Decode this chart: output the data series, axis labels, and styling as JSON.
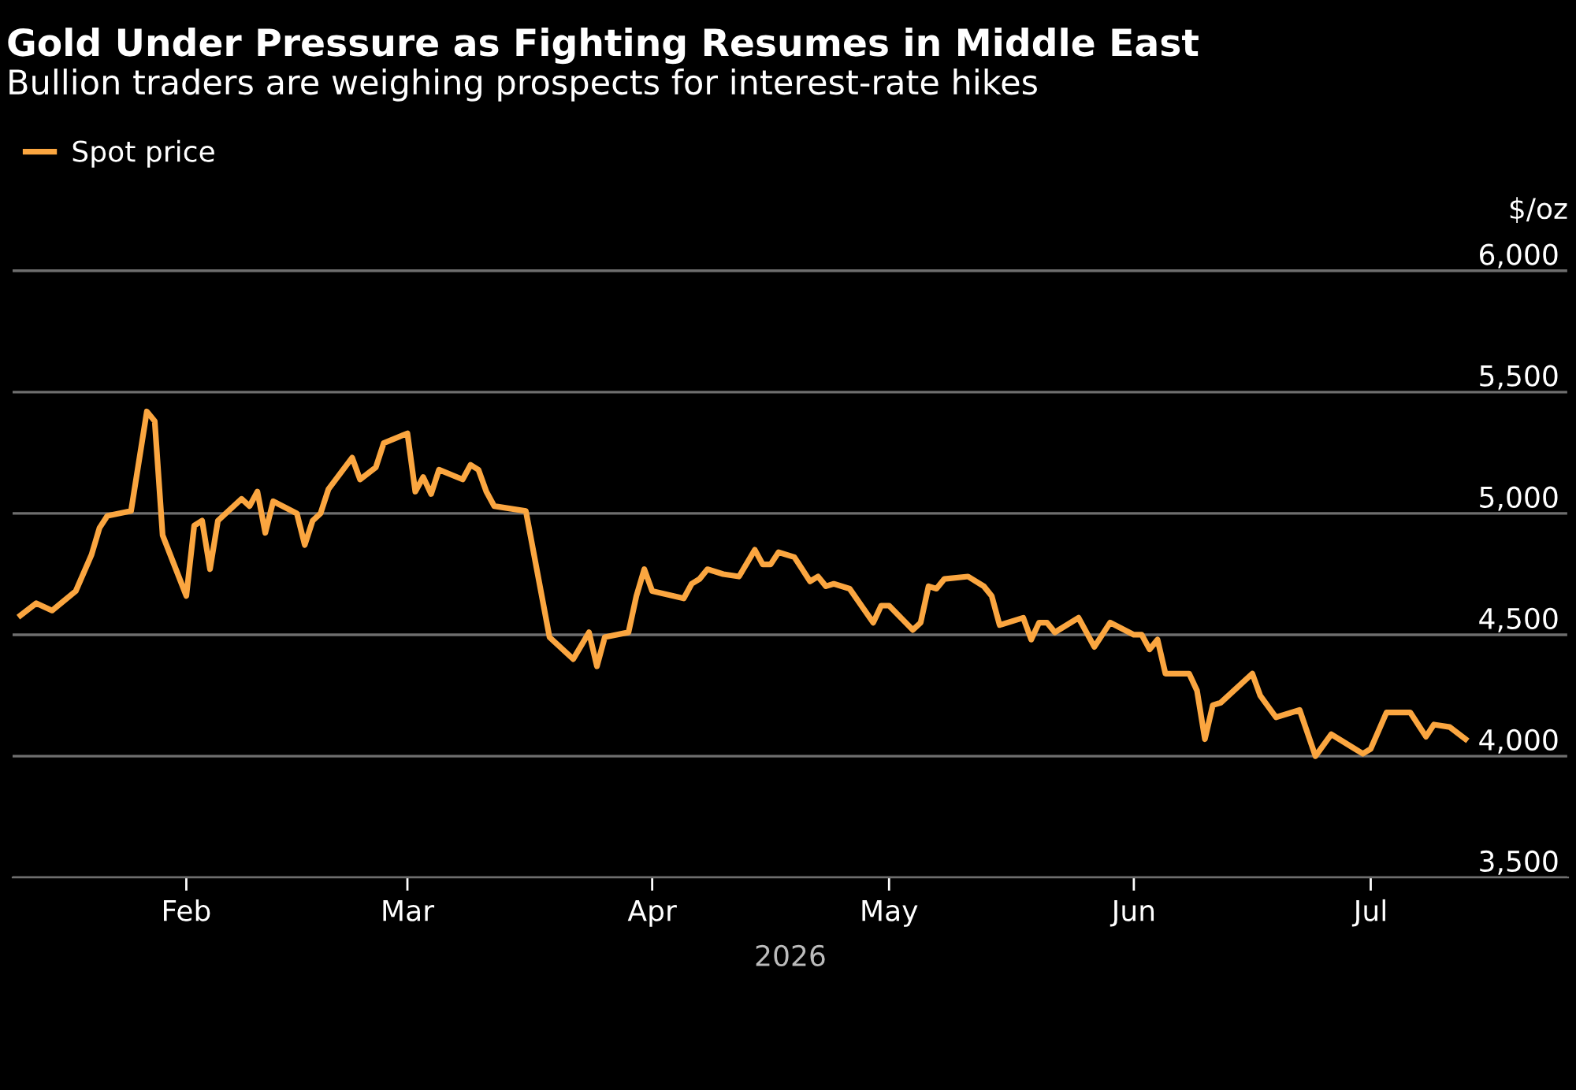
{
  "chart_data": {
    "type": "line",
    "title": "Gold Under Pressure as Fighting Resumes in Middle East",
    "subtitle": "Bullion traders are weighing prospects for interest-rate hikes",
    "xlabel": "2026",
    "ylabel": "$/oz",
    "x": [
      "2026-01-11",
      "2026-01-13",
      "2026-01-15",
      "2026-01-18",
      "2026-01-20",
      "2026-01-21",
      "2026-01-22",
      "2026-01-25",
      "2026-01-27",
      "2026-01-28",
      "2026-01-29",
      "2026-02-01",
      "2026-02-02",
      "2026-02-03",
      "2026-02-04",
      "2026-02-05",
      "2026-02-08",
      "2026-02-09",
      "2026-02-10",
      "2026-02-11",
      "2026-02-12",
      "2026-02-15",
      "2026-02-16",
      "2026-02-17",
      "2026-02-18",
      "2026-02-19",
      "2026-02-22",
      "2026-02-23",
      "2026-02-25",
      "2026-02-26",
      "2026-03-01",
      "2026-03-02",
      "2026-03-03",
      "2026-03-04",
      "2026-03-05",
      "2026-03-08",
      "2026-03-09",
      "2026-03-10",
      "2026-03-11",
      "2026-03-12",
      "2026-03-16",
      "2026-03-19",
      "2026-03-22",
      "2026-03-24",
      "2026-03-25",
      "2026-03-26",
      "2026-03-29",
      "2026-03-30",
      "2026-03-31",
      "2026-04-01",
      "2026-04-05",
      "2026-04-06",
      "2026-04-07",
      "2026-04-08",
      "2026-04-10",
      "2026-04-12",
      "2026-04-14",
      "2026-04-15",
      "2026-04-16",
      "2026-04-17",
      "2026-04-19",
      "2026-04-21",
      "2026-04-22",
      "2026-04-23",
      "2026-04-24",
      "2026-04-26",
      "2026-04-29",
      "2026-04-30",
      "2026-05-01",
      "2026-05-04",
      "2026-05-05",
      "2026-05-06",
      "2026-05-07",
      "2026-05-08",
      "2026-05-11",
      "2026-05-13",
      "2026-05-14",
      "2026-05-15",
      "2026-05-18",
      "2026-05-19",
      "2026-05-20",
      "2026-05-21",
      "2026-05-22",
      "2026-05-25",
      "2026-05-27",
      "2026-05-29",
      "2026-06-01",
      "2026-06-02",
      "2026-06-03",
      "2026-06-04",
      "2026-06-05",
      "2026-06-08",
      "2026-06-09",
      "2026-06-10",
      "2026-06-11",
      "2026-06-12",
      "2026-06-16",
      "2026-06-17",
      "2026-06-19",
      "2026-06-22",
      "2026-06-24",
      "2026-06-26",
      "2026-06-29",
      "2026-06-30",
      "2026-07-01",
      "2026-07-03",
      "2026-07-06",
      "2026-07-08",
      "2026-07-09",
      "2026-07-11",
      "2026-07-13"
    ],
    "series": [
      {
        "name": "Spot price",
        "color": "#fba640",
        "values": [
          4580,
          4630,
          4600,
          4680,
          4830,
          4940,
          4990,
          5010,
          5420,
          5380,
          4910,
          4660,
          4950,
          4970,
          4770,
          4970,
          5060,
          5030,
          5090,
          4920,
          5050,
          5000,
          4870,
          4970,
          5000,
          5100,
          5230,
          5140,
          5190,
          5290,
          5330,
          5090,
          5150,
          5080,
          5180,
          5140,
          5200,
          5180,
          5090,
          5030,
          5010,
          4490,
          4400,
          4510,
          4370,
          4490,
          4510,
          4660,
          4770,
          4680,
          4650,
          4710,
          4730,
          4770,
          4750,
          4740,
          4850,
          4790,
          4790,
          4840,
          4820,
          4720,
          4740,
          4700,
          4710,
          4690,
          4550,
          4620,
          4620,
          4520,
          4550,
          4700,
          4690,
          4730,
          4740,
          4700,
          4660,
          4540,
          4570,
          4480,
          4550,
          4550,
          4510,
          4570,
          4450,
          4550,
          4500,
          4500,
          4440,
          4480,
          4340,
          4340,
          4270,
          4070,
          4210,
          4220,
          4340,
          4250,
          4160,
          4190,
          4000,
          4090,
          4030,
          4010,
          4030,
          4180,
          4180,
          4080,
          4130,
          4120,
          4070
        ]
      }
    ],
    "xlim": [
      "2026-01-10",
      "2026-07-26"
    ],
    "xticks": [
      {
        "value": "2026-02-01",
        "label": "Feb"
      },
      {
        "value": "2026-03-01",
        "label": "Mar"
      },
      {
        "value": "2026-04-01",
        "label": "Apr"
      },
      {
        "value": "2026-05-01",
        "label": "May"
      },
      {
        "value": "2026-06-01",
        "label": "Jun"
      },
      {
        "value": "2026-07-01",
        "label": "Jul"
      }
    ],
    "ylim": [
      3500,
      6150
    ],
    "yticks": [
      {
        "value": 3500,
        "label": "3,500"
      },
      {
        "value": 4000,
        "label": "4,000"
      },
      {
        "value": 4500,
        "label": "4,500"
      },
      {
        "value": 5000,
        "label": "5,000"
      },
      {
        "value": 5500,
        "label": "5,500"
      },
      {
        "value": 6000,
        "label": "6,000"
      }
    ],
    "grid": "y",
    "legend": "top left",
    "marker": "none",
    "line_style": "solid"
  }
}
